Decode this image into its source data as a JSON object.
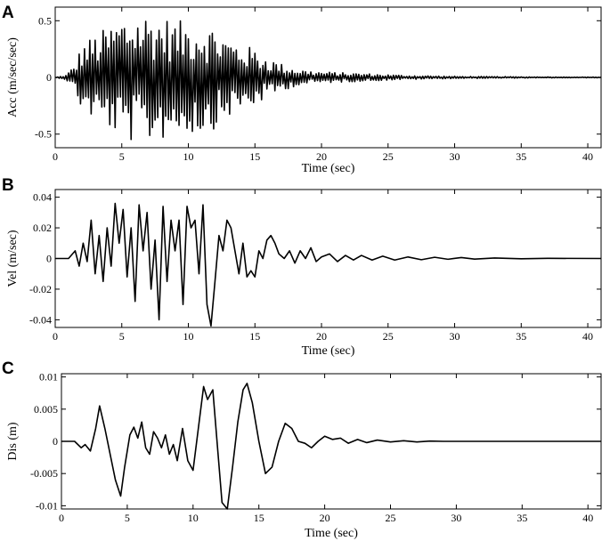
{
  "chart_data": [
    {
      "type": "line",
      "panel_label": "A",
      "xlabel": "Time (sec)",
      "ylabel": "Acc (m/sec/sec)",
      "xlim": [
        0,
        41
      ],
      "ylim": [
        -0.62,
        0.62
      ],
      "x_ticks": [
        0,
        5,
        10,
        15,
        20,
        25,
        30,
        35,
        40
      ],
      "x_tick_labels": [
        "0",
        "5",
        "10",
        "15",
        "20",
        "25",
        "30",
        "35",
        "40"
      ],
      "y_ticks": [
        -0.5,
        0,
        0.5
      ],
      "y_tick_labels": [
        "-0.5",
        "0",
        "0.5"
      ],
      "grid": false,
      "series": [
        {
          "signal": "oscillating",
          "x_step": 0.1,
          "x_start": 0,
          "x_end": 41,
          "envelope": {
            "x": [
              0,
              0.8,
              1.5,
              2,
              3,
              4,
              5,
              6,
              7,
              8,
              9,
              10,
              11,
              12,
              13,
              14,
              15,
              16,
              17,
              18,
              19,
              20,
              22,
              24,
              26,
              28,
              30,
              33,
              36,
              41
            ],
            "y": [
              0,
              0.02,
              0.12,
              0.3,
              0.38,
              0.45,
              0.55,
              0.58,
              0.58,
              0.55,
              0.5,
              0.5,
              0.5,
              0.45,
              0.35,
              0.3,
              0.25,
              0.18,
              0.12,
              0.08,
              0.06,
              0.05,
              0.04,
              0.03,
              0.02,
              0.015,
              0.01,
              0.008,
              0.005,
              0.003
            ]
          }
        }
      ]
    },
    {
      "type": "line",
      "panel_label": "B",
      "xlabel": "Time (sec)",
      "ylabel": "Vel (m/sec)",
      "xlim": [
        0,
        41
      ],
      "ylim": [
        -0.045,
        0.045
      ],
      "x_ticks": [
        0,
        5,
        10,
        15,
        20,
        25,
        30,
        35,
        40
      ],
      "x_tick_labels": [
        "0",
        "5",
        "10",
        "15",
        "20",
        "25",
        "30",
        "35",
        "40"
      ],
      "y_ticks": [
        -0.04,
        -0.02,
        0,
        0.02,
        0.04
      ],
      "y_tick_labels": [
        "-0.04",
        "-0.02",
        "0",
        "0.02",
        "0.04"
      ],
      "grid": false,
      "series": [
        {
          "signal": "keypoints",
          "x": [
            0,
            1,
            1.5,
            1.8,
            2.1,
            2.4,
            2.7,
            3.0,
            3.3,
            3.6,
            3.9,
            4.2,
            4.5,
            4.8,
            5.1,
            5.4,
            5.7,
            6.0,
            6.3,
            6.6,
            6.9,
            7.2,
            7.5,
            7.8,
            8.1,
            8.4,
            8.7,
            9.0,
            9.3,
            9.6,
            9.9,
            10.2,
            10.5,
            10.8,
            11.1,
            11.4,
            11.7,
            12.0,
            12.3,
            12.6,
            12.9,
            13.2,
            13.5,
            13.8,
            14.1,
            14.4,
            14.7,
            15.0,
            15.3,
            15.6,
            15.9,
            16.2,
            16.5,
            16.8,
            17.2,
            17.6,
            18.0,
            18.4,
            18.8,
            19.2,
            19.6,
            20.0,
            20.6,
            21.2,
            21.8,
            22.4,
            23.0,
            23.8,
            24.6,
            25.5,
            26.5,
            27.5,
            28.5,
            29.5,
            30.5,
            31.5,
            33,
            35,
            37,
            41
          ],
          "y": [
            0,
            0,
            0.005,
            -0.005,
            0.01,
            -0.002,
            0.025,
            -0.01,
            0.015,
            -0.015,
            0.02,
            -0.005,
            0.036,
            0.01,
            0.032,
            -0.012,
            0.02,
            -0.028,
            0.035,
            0.005,
            0.03,
            -0.02,
            0.012,
            -0.04,
            0.034,
            -0.015,
            0.025,
            0.005,
            0.025,
            -0.03,
            0.034,
            0.02,
            0.025,
            -0.01,
            0.035,
            -0.03,
            -0.044,
            -0.015,
            0.015,
            0.005,
            0.025,
            0.02,
            0.005,
            -0.01,
            0.01,
            -0.012,
            -0.008,
            -0.012,
            0.005,
            0.0,
            0.012,
            0.015,
            0.01,
            0.003,
            0.0,
            0.005,
            -0.003,
            0.005,
            0.0,
            0.007,
            -0.002,
            0.001,
            0.003,
            -0.002,
            0.002,
            -0.001,
            0.002,
            -0.001,
            0.0015,
            -0.001,
            0.001,
            -0.0008,
            0.0008,
            -0.0005,
            0.0006,
            -0.0004,
            0.0003,
            -0.0002,
            0.0001,
            0
          ]
        }
      ]
    },
    {
      "type": "line",
      "panel_label": "C",
      "xlabel": "Time (sec)",
      "ylabel": "Dis (m)",
      "xlim": [
        0,
        41
      ],
      "ylim": [
        -0.0105,
        0.0105
      ],
      "x_ticks": [
        0,
        5,
        10,
        15,
        20,
        25,
        30,
        35,
        40
      ],
      "x_tick_labels": [
        "0",
        "5",
        "10",
        "15",
        "20",
        "25",
        "30",
        "35",
        "40"
      ],
      "y_ticks": [
        -0.01,
        -0.005,
        0,
        0.005,
        0.01
      ],
      "y_tick_labels": [
        "-0.01",
        "-0.005",
        "0",
        "0.005",
        "0.01"
      ],
      "grid": false,
      "series": [
        {
          "signal": "keypoints",
          "x": [
            0,
            1,
            1.5,
            1.8,
            2.2,
            2.6,
            2.9,
            3.3,
            3.7,
            4.1,
            4.5,
            4.8,
            5.2,
            5.5,
            5.8,
            6.1,
            6.4,
            6.7,
            7.0,
            7.3,
            7.6,
            7.9,
            8.2,
            8.5,
            8.8,
            9.2,
            9.6,
            10.0,
            10.4,
            10.8,
            11.1,
            11.5,
            11.9,
            12.2,
            12.6,
            13.0,
            13.4,
            13.8,
            14.1,
            14.5,
            15.0,
            15.5,
            16.0,
            16.5,
            17.0,
            17.5,
            18.0,
            18.5,
            19.0,
            19.5,
            20.0,
            20.6,
            21.2,
            21.8,
            22.5,
            23.2,
            24.0,
            25.0,
            26.0,
            27.0,
            28.0,
            29.0,
            30.0,
            32.0,
            34.0,
            37.0,
            41.0
          ],
          "y": [
            0,
            0,
            -0.001,
            -0.0005,
            -0.0015,
            0.002,
            0.0055,
            0.002,
            -0.002,
            -0.006,
            -0.0085,
            -0.004,
            0.001,
            0.0022,
            0.0005,
            0.003,
            -0.001,
            -0.002,
            0.0015,
            0.0005,
            -0.001,
            0.001,
            -0.002,
            -0.0005,
            -0.003,
            0.002,
            -0.003,
            -0.0045,
            0.002,
            0.0085,
            0.0065,
            0.008,
            -0.002,
            -0.0095,
            -0.0105,
            -0.004,
            0.003,
            0.008,
            0.009,
            0.006,
            0.0,
            -0.005,
            -0.004,
            0.0,
            0.0028,
            0.002,
            0.0,
            -0.0003,
            -0.001,
            0.0,
            0.0008,
            0.0003,
            0.0005,
            -0.0003,
            0.0003,
            -0.0002,
            0.0002,
            -0.0001,
            0.0001,
            -0.0001,
            5e-05,
            0.0,
            0.0,
            0.0,
            0.0,
            0.0,
            0.0
          ]
        }
      ]
    }
  ]
}
